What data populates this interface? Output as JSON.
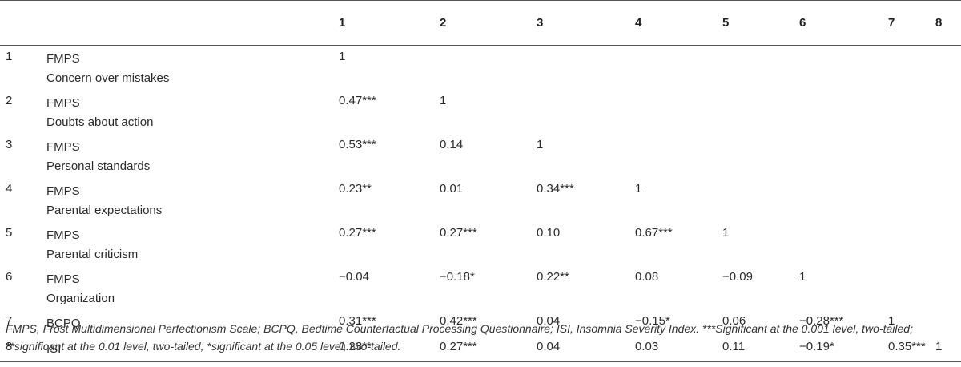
{
  "table": {
    "headers": [
      "1",
      "2",
      "3",
      "4",
      "5",
      "6",
      "7",
      "8"
    ],
    "rows": [
      {
        "num": "1",
        "var": "FMPS",
        "sub": "Concern over mistakes",
        "cells": [
          "1",
          "",
          "",
          "",
          "",
          "",
          "",
          ""
        ]
      },
      {
        "num": "2",
        "var": "FMPS",
        "sub": "Doubts about action",
        "cells": [
          "0.47***",
          "1",
          "",
          "",
          "",
          "",
          "",
          ""
        ]
      },
      {
        "num": "3",
        "var": "FMPS",
        "sub": "Personal standards",
        "cells": [
          "0.53***",
          "0.14",
          "1",
          "",
          "",
          "",
          "",
          ""
        ]
      },
      {
        "num": "4",
        "var": "FMPS",
        "sub": "Parental expectations",
        "cells": [
          "0.23**",
          "0.01",
          "0.34***",
          "1",
          "",
          "",
          "",
          ""
        ]
      },
      {
        "num": "5",
        "var": "FMPS",
        "sub": "Parental criticism",
        "cells": [
          "0.27***",
          "0.27***",
          "0.10",
          "0.67***",
          "1",
          "",
          "",
          ""
        ]
      },
      {
        "num": "6",
        "var": "FMPS",
        "sub": "Organization",
        "cells": [
          "−0.04",
          "−0.18*",
          "0.22**",
          "0.08",
          "−0.09",
          "1",
          "",
          ""
        ]
      },
      {
        "num": "7",
        "var": "BCPQ",
        "sub": "",
        "cells": [
          "0.31***",
          "0.42***",
          "0.04",
          "−0.15*",
          "0.06",
          "−0.28***",
          "1",
          ""
        ]
      },
      {
        "num": "8",
        "var": "ISI",
        "sub": "",
        "cells": [
          "0.23**",
          "0.27***",
          "0.04",
          "0.03",
          "0.11",
          "−0.19*",
          "0.35***",
          "1"
        ]
      }
    ]
  },
  "footnote": "FMPS, Frost Multidimensional Perfectionism Scale; BCPQ, Bedtime Counterfactual Processing Questionnaire; ISI, Insomnia Severity Index. ***Significant at the 0.001 level, two-tailed; **significant at the 0.01 level, two-tailed; *significant at the 0.05 level, two-tailed."
}
